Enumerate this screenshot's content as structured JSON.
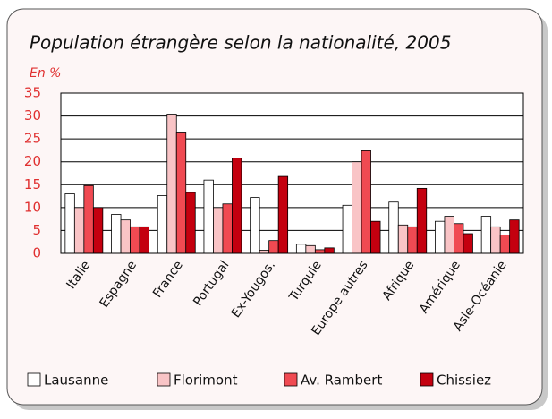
{
  "chart_data": {
    "type": "bar",
    "title": "Population étrangère selon la nationalité, 2005",
    "y_label": "En %",
    "categories": [
      "Italie",
      "Espagne",
      "France",
      "Portugal",
      "Ex-Yougos.",
      "Turquie",
      "Europe autres",
      "Afrique",
      "Amérique",
      "Asie-Océanie"
    ],
    "series": [
      {
        "name": "Lausanne",
        "color": "#ffffff",
        "values": [
          13,
          8.5,
          12.6,
          16,
          12.2,
          2,
          10.5,
          11.2,
          7,
          8.1
        ]
      },
      {
        "name": "Florimont",
        "color": "#f9c4c6",
        "values": [
          10,
          7.3,
          30.4,
          10,
          0.7,
          1.7,
          20,
          6.2,
          8.1,
          5.8
        ]
      },
      {
        "name": "Av. Rambert",
        "color": "#f04a52",
        "values": [
          14.8,
          5.8,
          26.5,
          10.8,
          2.8,
          0.8,
          22.4,
          5.8,
          6.5,
          4
        ]
      },
      {
        "name": "Chissiez",
        "color": "#c4000f",
        "values": [
          10,
          5.8,
          13.3,
          20.8,
          16.8,
          1.2,
          7,
          14.2,
          4.3,
          7.3
        ]
      }
    ],
    "ylim": [
      0,
      35
    ],
    "yticks": [
      0,
      5,
      10,
      15,
      20,
      25,
      30,
      35
    ],
    "grid": true
  }
}
